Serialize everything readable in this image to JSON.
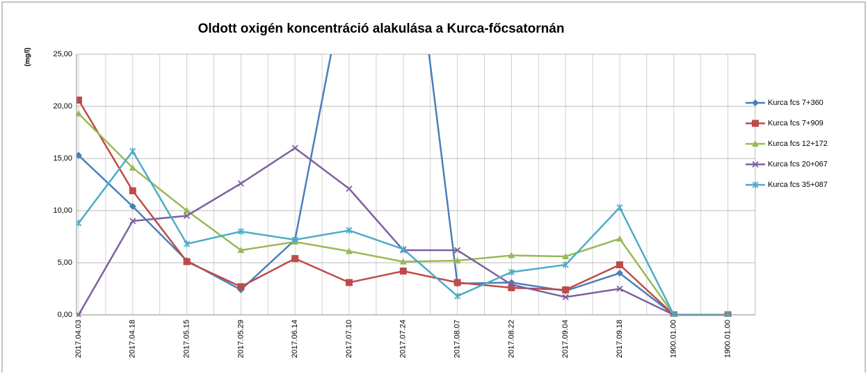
{
  "chart_data": {
    "type": "line",
    "title": "Oldott oxigén koncentráció alakulása a Kurca-főcsatornán",
    "y_label": "(mg/l)",
    "categories": [
      "2017.04.03",
      "2017.04.18",
      "2017.05.15",
      "2017.05.29",
      "2017.06.14",
      "2017.07.10",
      "2017.07.24",
      "2017.08.07",
      "2017.08.22",
      "2017.09.04",
      "2017.09.18",
      "1900.01.00",
      "1900.01.00"
    ],
    "series": [
      {
        "name": "Kurca fcs 7+360",
        "color": "#4a7ebb",
        "marker": "diamond",
        "values": [
          15.3,
          10.4,
          5.2,
          2.4,
          7.2,
          34,
          45,
          3.0,
          3.1,
          2.3,
          4.0,
          0,
          0
        ]
      },
      {
        "name": "Kurca fcs 7+909",
        "color": "#be4b48",
        "marker": "square",
        "values": [
          20.6,
          11.9,
          5.1,
          2.7,
          5.4,
          3.1,
          4.2,
          3.1,
          2.6,
          2.4,
          4.8,
          0,
          0
        ]
      },
      {
        "name": "Kurca fcs 12+172",
        "color": "#98b954",
        "marker": "triangle",
        "values": [
          19.3,
          14.1,
          10.0,
          6.2,
          7.0,
          6.1,
          5.1,
          5.2,
          5.7,
          5.6,
          7.3,
          0,
          0
        ]
      },
      {
        "name": "Kurca fcs 20+067",
        "color": "#7d60a0",
        "marker": "x",
        "values": [
          0,
          9.0,
          9.5,
          12.6,
          16.0,
          12.1,
          6.2,
          6.2,
          2.9,
          1.7,
          2.5,
          0,
          0
        ]
      },
      {
        "name": "Kurca fcs 35+087",
        "color": "#4bacc6",
        "marker": "star",
        "values": [
          8.8,
          15.7,
          6.8,
          8.0,
          7.2,
          8.1,
          6.3,
          1.8,
          4.1,
          4.8,
          10.3,
          0,
          0
        ]
      }
    ],
    "ylim": [
      0,
      25
    ],
    "yticks": [
      {
        "value": 0,
        "label": "0,00"
      },
      {
        "value": 5,
        "label": "5,00"
      },
      {
        "value": 10,
        "label": "10,00"
      },
      {
        "value": 15,
        "label": "15,00"
      },
      {
        "value": 20,
        "label": "20,00"
      },
      {
        "value": 25,
        "label": "25,00"
      }
    ],
    "grid": true,
    "legend": "right"
  }
}
